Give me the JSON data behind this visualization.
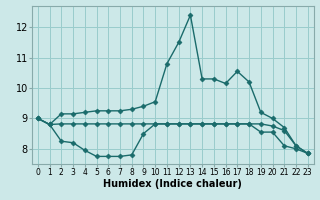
{
  "xlabel": "Humidex (Indice chaleur)",
  "bg_color": "#cce8e8",
  "grid_color": "#99cccc",
  "line_color": "#1a6b6b",
  "xlim": [
    -0.5,
    23.5
  ],
  "ylim": [
    7.5,
    12.7
  ],
  "yticks": [
    8,
    9,
    10,
    11,
    12
  ],
  "xticks": [
    0,
    1,
    2,
    3,
    4,
    5,
    6,
    7,
    8,
    9,
    10,
    11,
    12,
    13,
    14,
    15,
    16,
    17,
    18,
    19,
    20,
    21,
    22,
    23
  ],
  "line1_x": [
    0,
    1,
    2,
    3,
    4,
    5,
    6,
    7,
    8,
    9,
    10,
    11,
    12,
    13,
    14,
    15,
    16,
    17,
    18,
    19,
    20,
    21,
    22,
    23
  ],
  "line1_y": [
    9.0,
    8.8,
    9.15,
    9.15,
    9.2,
    9.25,
    9.25,
    9.25,
    9.3,
    9.4,
    9.55,
    10.8,
    11.5,
    12.4,
    10.3,
    10.3,
    10.15,
    10.55,
    10.2,
    9.2,
    9.0,
    8.7,
    8.1,
    7.85
  ],
  "line2_x": [
    0,
    1,
    2,
    3,
    4,
    5,
    6,
    7,
    8,
    9,
    10,
    11,
    12,
    13,
    14,
    15,
    16,
    17,
    18,
    19,
    20,
    21,
    22,
    23
  ],
  "line2_y": [
    9.0,
    8.8,
    8.82,
    8.82,
    8.82,
    8.82,
    8.82,
    8.82,
    8.82,
    8.82,
    8.82,
    8.82,
    8.82,
    8.82,
    8.82,
    8.82,
    8.82,
    8.82,
    8.82,
    8.82,
    8.75,
    8.6,
    8.1,
    7.85
  ],
  "line3_x": [
    0,
    1,
    2,
    3,
    4,
    5,
    6,
    7,
    8,
    9,
    10,
    11,
    12,
    13,
    14,
    15,
    16,
    17,
    18,
    19,
    20,
    21,
    22,
    23
  ],
  "line3_y": [
    9.0,
    8.8,
    8.25,
    8.2,
    7.95,
    7.75,
    7.75,
    7.75,
    7.8,
    8.5,
    8.82,
    8.82,
    8.82,
    8.82,
    8.82,
    8.82,
    8.82,
    8.82,
    8.82,
    8.55,
    8.55,
    8.1,
    8.0,
    7.85
  ],
  "markersize": 2.5,
  "linewidth": 1.0
}
